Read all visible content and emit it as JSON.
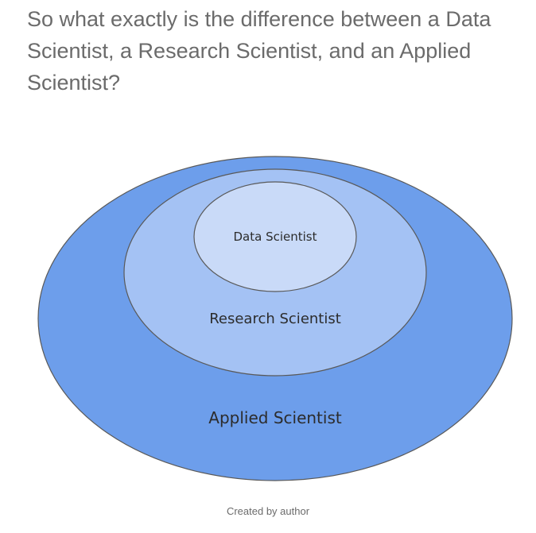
{
  "heading": "So what exactly is the difference between a Data Scientist, a Research Scientist, and an Applied Scientist?",
  "diagram": {
    "outer_label": "Applied Scientist",
    "middle_label": "Research Scientist",
    "inner_label": "Data Scientist",
    "outer_color": "#6d9eeb",
    "middle_color": "#a4c2f4",
    "inner_color": "#c9daf8",
    "stroke_color": "#595959"
  },
  "caption": "Created by author"
}
